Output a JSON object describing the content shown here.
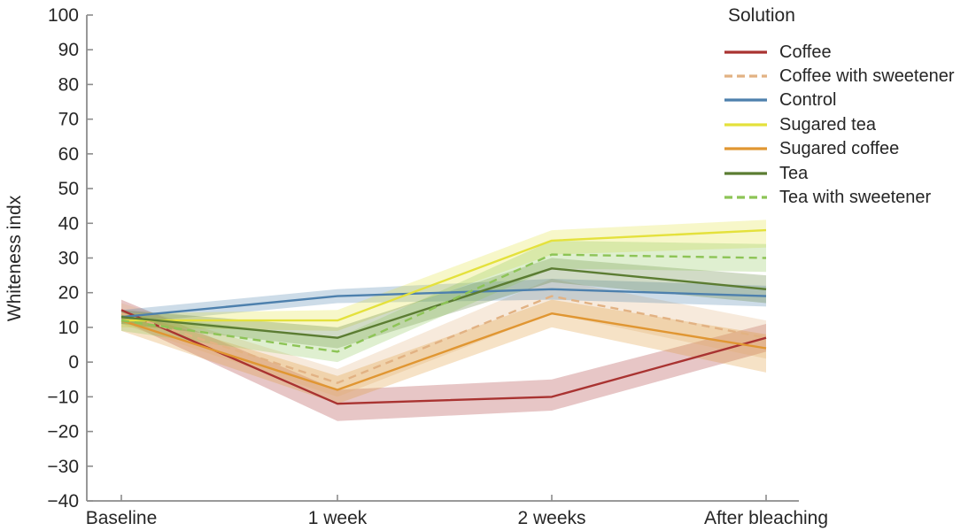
{
  "chart_data": {
    "type": "line",
    "title": "",
    "legend_title": "Solution",
    "legend_position": "top-right",
    "ylabel": "Whiteness indx",
    "xlabel": "",
    "grid": false,
    "ylim": [
      -40,
      100
    ],
    "ytick_step": 10,
    "yticks": [
      100,
      90,
      80,
      70,
      60,
      50,
      40,
      30,
      20,
      10,
      0,
      -10,
      -20,
      -30,
      -40
    ],
    "ytick_labels": [
      "100",
      "90",
      "80",
      "70",
      "60",
      "50",
      "40",
      "30",
      "20",
      "10",
      "0",
      "−10",
      "−20",
      "−30",
      "−40"
    ],
    "categories": [
      "Baseline",
      "1 week",
      "2 weeks",
      "After bleaching"
    ],
    "series": [
      {
        "name": "Coffee",
        "color": "#a93331",
        "dash": "solid",
        "values": [
          15,
          -12,
          -10,
          7
        ],
        "band_lower": [
          12,
          -17,
          -14,
          3
        ],
        "band_upper": [
          18,
          -8,
          -5,
          11
        ]
      },
      {
        "name": "Coffee with sweetener",
        "color": "#e2b283",
        "dash": "dashed",
        "values": [
          14,
          -6,
          19,
          7
        ],
        "band_lower": [
          11,
          -10,
          14,
          1
        ],
        "band_upper": [
          17,
          -2,
          24,
          12
        ]
      },
      {
        "name": "Control",
        "color": "#4d80ad",
        "dash": "solid",
        "values": [
          13,
          19,
          21,
          19
        ],
        "band_lower": [
          11,
          17,
          18,
          16
        ],
        "band_upper": [
          15,
          21,
          24,
          22
        ]
      },
      {
        "name": "Sugared tea",
        "color": "#e4e13c",
        "dash": "solid",
        "values": [
          12,
          12,
          35,
          38
        ],
        "band_lower": [
          10,
          9,
          31,
          33
        ],
        "band_upper": [
          14,
          15,
          38,
          41
        ]
      },
      {
        "name": "Sugared coffee",
        "color": "#e09632",
        "dash": "solid",
        "values": [
          12,
          -8,
          14,
          4
        ],
        "band_lower": [
          9,
          -12,
          10,
          -3
        ],
        "band_upper": [
          15,
          -4,
          18,
          8
        ]
      },
      {
        "name": "Tea",
        "color": "#5b7c32",
        "dash": "solid",
        "values": [
          13,
          7,
          27,
          21
        ],
        "band_lower": [
          11,
          4,
          23,
          17
        ],
        "band_upper": [
          15,
          10,
          30,
          25
        ]
      },
      {
        "name": "Tea with sweetener",
        "color": "#8dc456",
        "dash": "dashed",
        "values": [
          12,
          3,
          31,
          30
        ],
        "band_lower": [
          9,
          0,
          27,
          26
        ],
        "band_upper": [
          14,
          7,
          35,
          34
        ]
      }
    ]
  }
}
